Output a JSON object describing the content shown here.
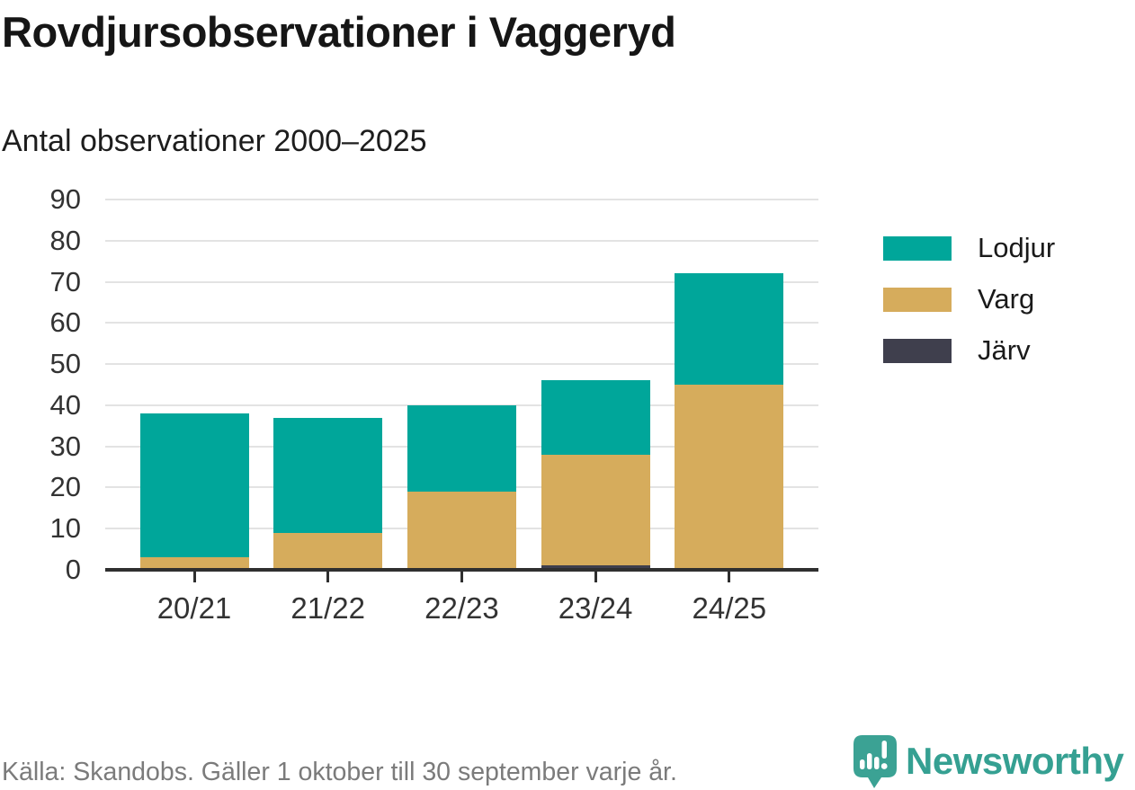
{
  "title": "Rovdjursobservationer i Vaggeryd",
  "subtitle": "Antal observationer 2000–2025",
  "footer": {
    "source": "Källa: Skandobs. Gäller 1 oktober till 30 september varje år.",
    "brand": "Newsworthy"
  },
  "colors": {
    "lodjur": "#00a69a",
    "varg": "#d6ac5c",
    "jarv": "#3f3f4d",
    "axis": "#2f2f2f",
    "grid": "#e3e3e3",
    "tick_text": "#333333",
    "muted_text": "#7b7b7b",
    "brand_teal": "#35a092"
  },
  "chart_data": {
    "type": "bar",
    "stacked": true,
    "title": "Rovdjursobservationer i Vaggeryd",
    "subtitle": "Antal observationer 2000–2025",
    "categories": [
      "20/21",
      "21/22",
      "22/23",
      "23/24",
      "24/25"
    ],
    "series": [
      {
        "name": "Lodjur",
        "color": "#00a69a",
        "values": [
          35,
          28,
          21,
          18,
          27
        ]
      },
      {
        "name": "Varg",
        "color": "#d6ac5c",
        "values": [
          3,
          9,
          19,
          27,
          45
        ]
      },
      {
        "name": "Järv",
        "color": "#3f3f4d",
        "values": [
          0,
          0,
          0,
          1,
          0
        ]
      }
    ],
    "totals": [
      38,
      37,
      40,
      46,
      72
    ],
    "xlabel": "",
    "ylabel": "",
    "ylim": [
      0,
      90
    ],
    "ytick_step": 10,
    "grid": "horizontal",
    "legend_position": "right"
  }
}
